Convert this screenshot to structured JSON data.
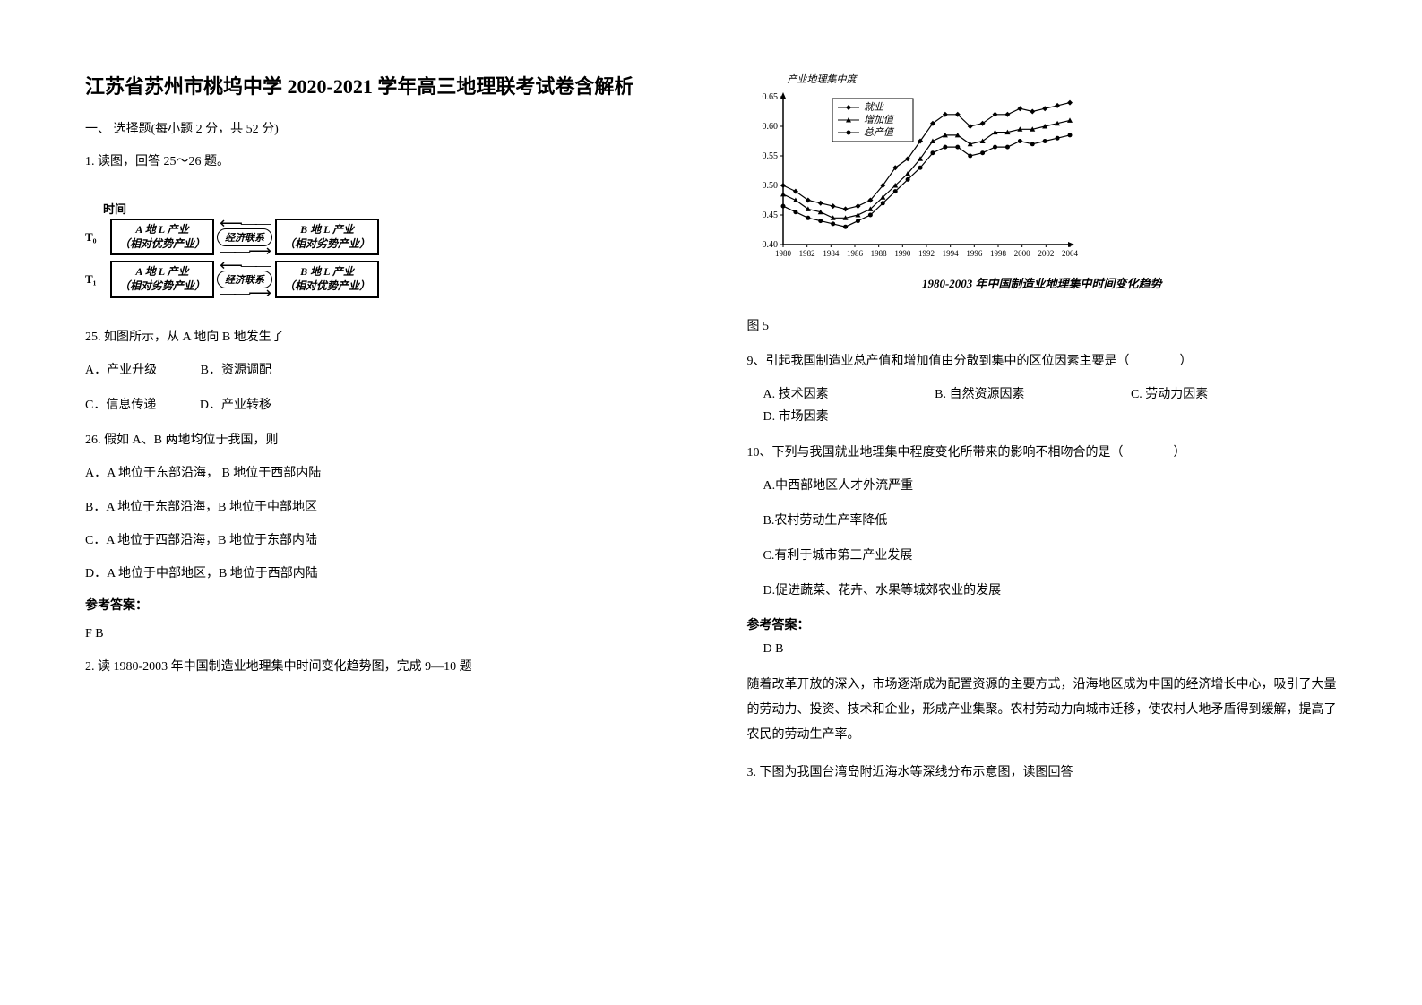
{
  "title": "江苏省苏州市桃坞中学 2020-2021 学年高三地理联考试卷含解析",
  "section1": {
    "header": "一、 选择题(每小题 2 分，共 52 分)",
    "q1_stem": "1. 读图，回答 25～26 题。",
    "flow": {
      "time_header": "时间",
      "t0": "T₀",
      "t1": "T₁",
      "box_a_t0_l1": "A 地 L 产业",
      "box_a_t0_l2": "（相对优势产业）",
      "box_b_t0_l1": "B 地 L 产业",
      "box_b_t0_l2": "（相对劣势产业）",
      "box_a_t1_l1": "A 地 L 产业",
      "box_a_t1_l2": "（相对劣势产业）",
      "box_b_t1_l1": "B 地 L 产业",
      "box_b_t1_l2": "（相对优势产业）",
      "link_label": "经济联系"
    },
    "q25": "25. 如图所示，从 A 地向 B 地发生了",
    "q25_opts_1": {
      "a": "A．产业升级",
      "b": "B．资源调配"
    },
    "q25_opts_2": {
      "c": "C．信息传递",
      "d": "D．产业转移"
    },
    "q26": "26. 假如 A、B 两地均位于我国，则",
    "q26_a": "A．A 地位于东部沿海，  B 地位于西部内陆",
    "q26_b": "B．A 地位于东部沿海，B 地位于中部地区",
    "q26_c": "C．A 地位于西部沿海，B 地位于东部内陆",
    "q26_d": "D．A 地位于中部地区，B 地位于西部内陆",
    "answer_label": "参考答案：",
    "answer_text": "F  B",
    "q2_stem": "2. 读 1980-2003 年中国制造业地理集中时间变化趋势图，完成 9—10 题"
  },
  "section2": {
    "chart": {
      "ylabel": "产业地理集中度",
      "legend": [
        "就业",
        "增加值",
        "总产值"
      ],
      "ylim": [
        0.4,
        0.65
      ],
      "yticks": [
        "0.40",
        "0.45",
        "0.50",
        "0.55",
        "0.60",
        "0.65"
      ],
      "xticks": [
        "1980",
        "1982",
        "1984",
        "1986",
        "1988",
        "1990",
        "1992",
        "1994",
        "1996",
        "1998",
        "2000",
        "2002",
        "2004"
      ],
      "series": {
        "jiuye": [
          0.5,
          0.49,
          0.475,
          0.47,
          0.465,
          0.46,
          0.465,
          0.475,
          0.5,
          0.53,
          0.545,
          0.575,
          0.605,
          0.62,
          0.62,
          0.6,
          0.605,
          0.62,
          0.62,
          0.63,
          0.625,
          0.63,
          0.635,
          0.64
        ],
        "zengjiazhi": [
          0.485,
          0.475,
          0.46,
          0.455,
          0.445,
          0.445,
          0.45,
          0.46,
          0.48,
          0.5,
          0.52,
          0.545,
          0.575,
          0.585,
          0.585,
          0.57,
          0.575,
          0.59,
          0.59,
          0.595,
          0.595,
          0.6,
          0.605,
          0.61
        ],
        "zongchanzhi": [
          0.465,
          0.455,
          0.445,
          0.44,
          0.435,
          0.43,
          0.44,
          0.45,
          0.47,
          0.49,
          0.51,
          0.53,
          0.555,
          0.565,
          0.565,
          0.55,
          0.555,
          0.565,
          0.565,
          0.575,
          0.57,
          0.575,
          0.58,
          0.585
        ]
      },
      "colors": {
        "line": "#000000",
        "bg": "#ffffff"
      },
      "markers": {
        "jiuye": "diamond",
        "zengjiazhi": "triangle",
        "zongchanzhi": "circle"
      },
      "caption": "1980-2003 年中国制造业地理集中时间变化趋势"
    },
    "fig_label": "图 5",
    "q9": "9、引起我国制造业总产值和增加值由分散到集中的区位因素主要是（　　　　）",
    "q9_opts": {
      "a": "A. 技术因素",
      "b": "B. 自然资源因素",
      "c": "C. 劳动力因素",
      "d": "D. 市场因素"
    },
    "q10": "10、下列与我国就业地理集中程度变化所带来的影响不相吻合的是（　　　　）",
    "q10_a": "A.中西部地区人才外流严重",
    "q10_b": "B.农村劳动生产率降低",
    "q10_c": "C.有利于城市第三产业发展",
    "q10_d": "D.促进蔬菜、花卉、水果等城郊农业的发展",
    "answer_label": "参考答案：",
    "answer_text": "D  B",
    "explanation": "随着改革开放的深入，市场逐渐成为配置资源的主要方式，沿海地区成为中国的经济增长中心，吸引了大量的劳动力、投资、技术和企业，形成产业集聚。农村劳动力向城市迁移，使农村人地矛盾得到缓解，提高了农民的劳动生产率。",
    "q3_stem": "3. 下图为我国台湾岛附近海水等深线分布示意图，读图回答"
  }
}
